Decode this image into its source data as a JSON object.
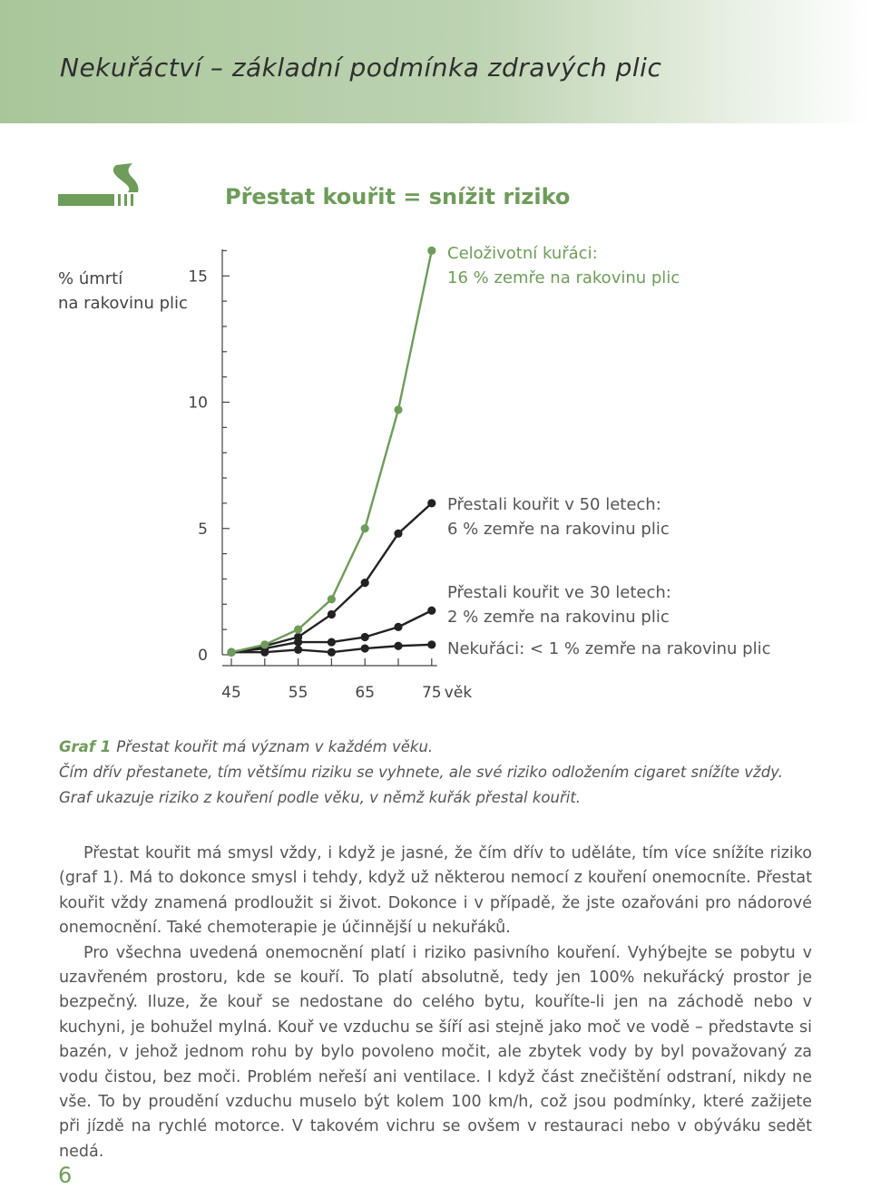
{
  "header": {
    "title": "Nekuřáctví – základní podmínka zdravých plic"
  },
  "section": {
    "heading": "Přestat kouřit = snížit riziko"
  },
  "icons": {
    "cigarette": "cigarette-with-smoke-icon"
  },
  "colors": {
    "green": "#6e9c5a",
    "black": "#222222",
    "text": "#555555"
  },
  "chart_data": {
    "type": "line",
    "ylabel_lines": [
      "% úmrtí",
      "na rakovinu plic"
    ],
    "xlabel": "věk",
    "x": [
      45,
      50,
      55,
      60,
      65,
      70,
      75
    ],
    "x_ticks": [
      45,
      55,
      65,
      75
    ],
    "y_ticks": [
      0,
      5,
      10,
      15
    ],
    "ylim": [
      0,
      16
    ],
    "series": [
      {
        "name": "Celoživotní kuřáci",
        "color": "#6e9c5a",
        "values": [
          0.1,
          0.4,
          1.0,
          2.2,
          5.0,
          9.7,
          16.0
        ],
        "annotation": [
          "Celoživotní kuřáci:",
          "16 % zemře na rakovinu plic"
        ]
      },
      {
        "name": "Přestali kouřit v 50 letech",
        "color": "#222222",
        "values": [
          0.1,
          0.35,
          0.7,
          1.6,
          2.85,
          4.8,
          6.0
        ],
        "annotation": [
          "Přestali kouřit v 50 letech:",
          "6 % zemře na rakovinu plic"
        ]
      },
      {
        "name": "Přestali kouřit ve 30 letech",
        "color": "#222222",
        "values": [
          0.1,
          0.25,
          0.5,
          0.5,
          0.7,
          1.1,
          1.75
        ],
        "annotation": [
          "Přestali kouřit ve 30 letech:",
          "2 % zemře na rakovinu plic"
        ]
      },
      {
        "name": "Nekuřáci",
        "color": "#222222",
        "values": [
          0.1,
          0.1,
          0.2,
          0.1,
          0.25,
          0.35,
          0.4
        ],
        "annotation": [
          "Nekuřáci: < 1 % zemře na rakovinu plic"
        ]
      }
    ]
  },
  "caption": {
    "label": "Graf 1",
    "line1": "Přestat kouřit má význam v každém věku.",
    "line2": "Čím dřív přestanete, tím většímu riziku se vyhnete, ale své riziko odložením cigaret snížíte vždy.",
    "line3": "Graf ukazuje riziko z kouření podle věku, v němž kuřák přestal kouřit."
  },
  "body": {
    "paragraphs": [
      "Přestat kouřit má smysl vždy, i když je jasné, že čím dřív to uděláte, tím více snížíte riziko (graf 1). Má to dokonce smysl i tehdy, když už některou nemocí z kouření onemocníte. Přestat kouřit vždy znamená prodloužit si život. Dokonce i v případě, že jste ozařováni pro nádorové onemocnění. Také chemoterapie je účinnější u nekuřáků.",
      "Pro všechna uvedená onemocnění platí i riziko pasivního kouření. Vyhýbejte se pobytu v uzavřeném prostoru, kde se kouří. To platí absolutně, tedy jen 100% nekuřácký prostor je bezpečný. Iluze, že kouř se nedostane do celého bytu, kouříte-li jen na záchodě nebo v kuchyni, je bohužel mylná. Kouř ve vzduchu se šíří asi stejně jako moč ve vodě – představte si bazén, v jehož jednom rohu by bylo povoleno močit, ale zbytek vody by byl považovaný za vodu čistou, bez moči. Problém neřeší ani ventilace. I když část znečištění odstraní, nikdy ne vše. To by proudění vzduchu muselo být kolem 100 km/h, což jsou podmínky, které zažijete při jízdě na rychlé motorce. V takovém vichru se ovšem v restauraci nebo v obýváku sedět nedá."
    ]
  },
  "page_number": "6"
}
